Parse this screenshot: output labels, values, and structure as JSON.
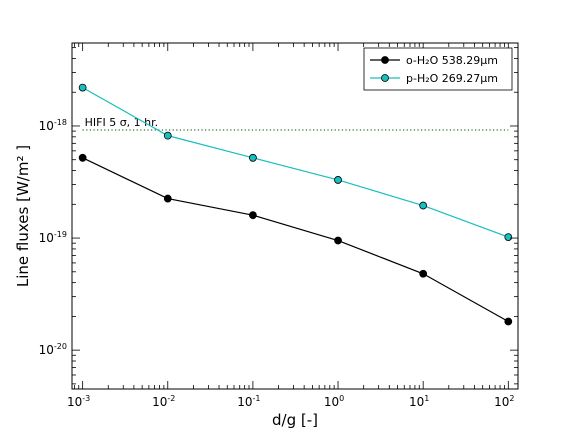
{
  "chart_data": {
    "type": "line",
    "xscale": "log",
    "yscale": "log",
    "xlabel": "d/g [-]",
    "ylabel": "Line fluxes [W/m² ]",
    "xlim": [
      0.00075,
      130
    ],
    "ylim": [
      4.5e-21,
      5.5e-18
    ],
    "x_ticks": [
      {
        "value": 0.001,
        "base": "10",
        "exp": "-3"
      },
      {
        "value": 0.01,
        "base": "10",
        "exp": "-2"
      },
      {
        "value": 0.1,
        "base": "10",
        "exp": "-1"
      },
      {
        "value": 1,
        "base": "10",
        "exp": "0"
      },
      {
        "value": 10,
        "base": "10",
        "exp": "1"
      },
      {
        "value": 100,
        "base": "10",
        "exp": "2"
      }
    ],
    "y_ticks": [
      {
        "value": 1e-20,
        "base": "10",
        "exp": "-20"
      },
      {
        "value": 1e-19,
        "base": "10",
        "exp": "-19"
      },
      {
        "value": 1e-18,
        "base": "10",
        "exp": "-18"
      }
    ],
    "x": [
      0.001,
      0.01,
      0.1,
      1,
      10,
      100
    ],
    "series": [
      {
        "name": "o-H₂O 538.29μm",
        "color": "#000000",
        "values": [
          5.2e-19,
          2.25e-19,
          1.6e-19,
          9.5e-20,
          4.8e-20,
          1.8e-20
        ]
      },
      {
        "name": "p-H₂O 269.27μm",
        "color": "#17bfbf",
        "values": [
          2.2e-18,
          8.2e-19,
          5.2e-19,
          3.3e-19,
          1.95e-19,
          1.02e-19
        ]
      }
    ],
    "threshold": {
      "value": 9.2e-19,
      "label": "HIFI 5 σ, 1 hr.",
      "color": "#2f6d2f",
      "style": "dotted"
    },
    "legend_position": "top-right",
    "grid": false
  }
}
